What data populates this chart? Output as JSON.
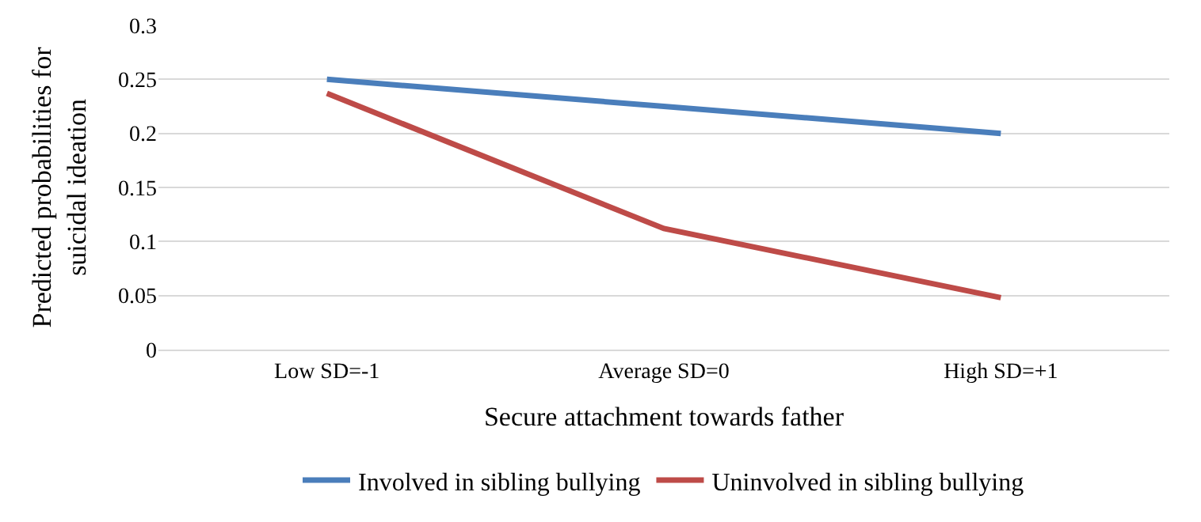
{
  "chart_data": {
    "type": "line",
    "xlabel": "Secure attachment towards father",
    "ylabel": "Predicted probabilities for\nsuicidal ideation",
    "categories": [
      "Low SD=-1",
      "Average SD=0",
      "High SD=+1"
    ],
    "series": [
      {
        "name": "Involved in sibling bullying",
        "color": "#4a7ebb",
        "values": [
          0.25,
          0.225,
          0.2
        ]
      },
      {
        "name": "Uninvolved in sibling bullying",
        "color": "#be4b48",
        "values": [
          0.237,
          0.112,
          0.048
        ]
      }
    ],
    "ylim": [
      0,
      0.3
    ],
    "yticks": [
      0,
      0.05,
      0.1,
      0.15,
      0.2,
      0.25,
      0.3
    ],
    "grid": "y",
    "legend": "bottom",
    "marker": "none",
    "line_style": "solid"
  }
}
